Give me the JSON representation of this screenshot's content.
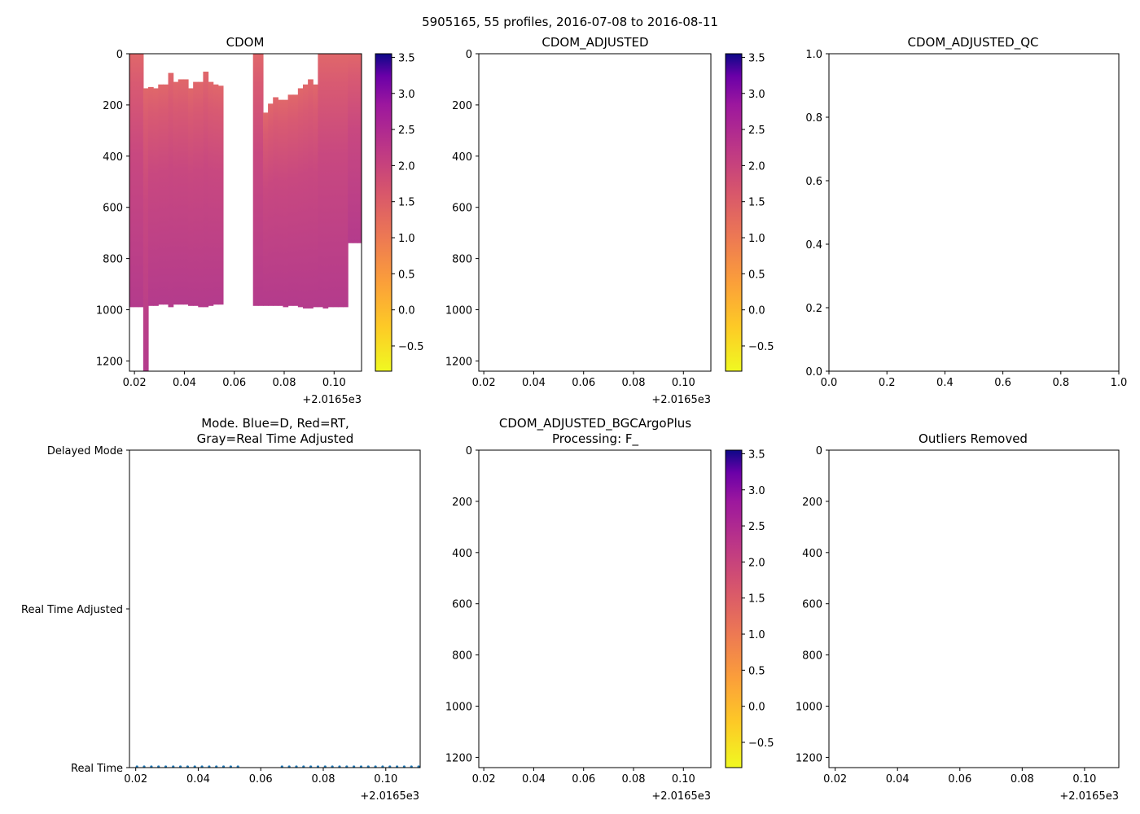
{
  "suptitle": "5905165, 55 profiles, 2016-07-08 to 2016-08-11",
  "offset_label": "+2.0165e3",
  "colormap": "plasma (reversed)",
  "chart_data": [
    {
      "id": "cdom",
      "type": "heatmap",
      "title": "CDOM",
      "xlabel": "",
      "ylabel": "",
      "xlim": [
        0.018,
        0.111
      ],
      "ylim": [
        1240,
        0
      ],
      "xticks": [
        0.02,
        0.04,
        0.06,
        0.08,
        0.1
      ],
      "xtick_labels": [
        "0.02",
        "0.04",
        "0.06",
        "0.08",
        "0.10"
      ],
      "yticks": [
        0,
        200,
        400,
        600,
        800,
        1000,
        1200
      ],
      "x_offset": "+2.0165e3",
      "colorbar": {
        "range": [
          -0.85,
          3.55
        ],
        "ticks": [
          -0.5,
          0.0,
          0.5,
          1.0,
          1.5,
          2.0,
          2.5,
          3.0,
          3.5
        ]
      },
      "value_range_approx": [
        0.8,
        1.9
      ],
      "profiles": [
        {
          "x": 0.0185,
          "top": 0,
          "bottom": 990
        },
        {
          "x": 0.0205,
          "top": 0,
          "bottom": 990
        },
        {
          "x": 0.0225,
          "top": 0,
          "bottom": 990
        },
        {
          "x": 0.0245,
          "top": 135,
          "bottom": 1240
        },
        {
          "x": 0.0265,
          "top": 130,
          "bottom": 985
        },
        {
          "x": 0.0285,
          "top": 135,
          "bottom": 985
        },
        {
          "x": 0.0305,
          "top": 120,
          "bottom": 980
        },
        {
          "x": 0.0325,
          "top": 120,
          "bottom": 980
        },
        {
          "x": 0.0345,
          "top": 75,
          "bottom": 990
        },
        {
          "x": 0.0365,
          "top": 110,
          "bottom": 980
        },
        {
          "x": 0.0385,
          "top": 100,
          "bottom": 980
        },
        {
          "x": 0.0405,
          "top": 100,
          "bottom": 980
        },
        {
          "x": 0.0425,
          "top": 135,
          "bottom": 985
        },
        {
          "x": 0.0445,
          "top": 110,
          "bottom": 985
        },
        {
          "x": 0.0465,
          "top": 110,
          "bottom": 990
        },
        {
          "x": 0.0485,
          "top": 70,
          "bottom": 990
        },
        {
          "x": 0.0505,
          "top": 110,
          "bottom": 985
        },
        {
          "x": 0.0525,
          "top": 120,
          "bottom": 980
        },
        {
          "x": 0.0545,
          "top": 125,
          "bottom": 980
        },
        {
          "x": 0.0685,
          "top": 0,
          "bottom": 985
        },
        {
          "x": 0.0705,
          "top": 0,
          "bottom": 985
        },
        {
          "x": 0.0725,
          "top": 230,
          "bottom": 985
        },
        {
          "x": 0.0745,
          "top": 195,
          "bottom": 985
        },
        {
          "x": 0.0765,
          "top": 170,
          "bottom": 985
        },
        {
          "x": 0.0785,
          "top": 180,
          "bottom": 985
        },
        {
          "x": 0.0805,
          "top": 180,
          "bottom": 990
        },
        {
          "x": 0.0825,
          "top": 160,
          "bottom": 985
        },
        {
          "x": 0.0845,
          "top": 160,
          "bottom": 985
        },
        {
          "x": 0.0865,
          "top": 135,
          "bottom": 990
        },
        {
          "x": 0.0885,
          "top": 120,
          "bottom": 995
        },
        {
          "x": 0.0905,
          "top": 100,
          "bottom": 995
        },
        {
          "x": 0.0925,
          "top": 120,
          "bottom": 990
        },
        {
          "x": 0.0945,
          "top": 0,
          "bottom": 990
        },
        {
          "x": 0.0965,
          "top": 0,
          "bottom": 995
        },
        {
          "x": 0.0985,
          "top": 0,
          "bottom": 990
        },
        {
          "x": 0.1005,
          "top": 0,
          "bottom": 990
        },
        {
          "x": 0.1025,
          "top": 0,
          "bottom": 990
        },
        {
          "x": 0.1045,
          "top": 0,
          "bottom": 990
        },
        {
          "x": 0.1065,
          "top": 0,
          "bottom": 740
        },
        {
          "x": 0.1085,
          "top": 0,
          "bottom": 740
        },
        {
          "x": 0.1105,
          "top": 0,
          "bottom": 740
        }
      ]
    },
    {
      "id": "cdom_adjusted",
      "type": "heatmap",
      "title": "CDOM_ADJUSTED",
      "xlim": [
        0.018,
        0.111
      ],
      "ylim": [
        1240,
        0
      ],
      "xticks": [
        0.02,
        0.04,
        0.06,
        0.08,
        0.1
      ],
      "xtick_labels": [
        "0.02",
        "0.04",
        "0.06",
        "0.08",
        "0.10"
      ],
      "yticks": [
        0,
        200,
        400,
        600,
        800,
        1000,
        1200
      ],
      "x_offset": "+2.0165e3",
      "colorbar": {
        "range": [
          -0.85,
          3.55
        ],
        "ticks": [
          -0.5,
          0.0,
          0.5,
          1.0,
          1.5,
          2.0,
          2.5,
          3.0,
          3.5
        ]
      },
      "data": []
    },
    {
      "id": "cdom_adjusted_qc",
      "type": "scatter",
      "title": "CDOM_ADJUSTED_QC",
      "xlim": [
        0.0,
        1.0
      ],
      "ylim": [
        0.0,
        1.0
      ],
      "xticks": [
        0.0,
        0.2,
        0.4,
        0.6,
        0.8,
        1.0
      ],
      "xtick_labels": [
        "0.0",
        "0.2",
        "0.4",
        "0.6",
        "0.8",
        "1.0"
      ],
      "yticks": [
        0.0,
        0.2,
        0.4,
        0.6,
        0.8,
        1.0
      ],
      "ytick_labels": [
        "0.0",
        "0.2",
        "0.4",
        "0.6",
        "0.8",
        "1.0"
      ],
      "data": []
    },
    {
      "id": "mode",
      "type": "scatter",
      "title_lines": [
        "Mode. Blue=D, Red=RT,",
        "Gray=Real Time Adjusted"
      ],
      "xlim": [
        0.018,
        0.111
      ],
      "xticks": [
        0.02,
        0.04,
        0.06,
        0.08,
        0.1
      ],
      "xtick_labels": [
        "0.02",
        "0.04",
        "0.06",
        "0.08",
        "0.10"
      ],
      "x_offset": "+2.0165e3",
      "ycategories": [
        "Real Time",
        "Real Time Adjusted",
        "Delayed Mode"
      ],
      "point_color": "#1f77b4",
      "points_category": "Real Time",
      "points_x": [
        0.0204,
        0.0227,
        0.025,
        0.0273,
        0.0296,
        0.032,
        0.0343,
        0.0366,
        0.0389,
        0.0412,
        0.0435,
        0.0458,
        0.0481,
        0.0504,
        0.0527,
        0.0668,
        0.0691,
        0.0714,
        0.0737,
        0.076,
        0.0783,
        0.0806,
        0.0829,
        0.0852,
        0.0875,
        0.0898,
        0.0921,
        0.0944,
        0.0967,
        0.099,
        0.1013,
        0.1036,
        0.1059,
        0.1082,
        0.1105
      ]
    },
    {
      "id": "cdom_bgcargoplus",
      "type": "heatmap",
      "title_lines": [
        "CDOM_ADJUSTED_BGCArgoPlus",
        "Processing: F_"
      ],
      "xlim": [
        0.018,
        0.111
      ],
      "ylim": [
        1240,
        0
      ],
      "xticks": [
        0.02,
        0.04,
        0.06,
        0.08,
        0.1
      ],
      "xtick_labels": [
        "0.02",
        "0.04",
        "0.06",
        "0.08",
        "0.10"
      ],
      "yticks": [
        0,
        200,
        400,
        600,
        800,
        1000,
        1200
      ],
      "x_offset": "+2.0165e3",
      "colorbar": {
        "range": [
          -0.85,
          3.55
        ],
        "ticks": [
          -0.5,
          0.0,
          0.5,
          1.0,
          1.5,
          2.0,
          2.5,
          3.0,
          3.5
        ]
      },
      "data": []
    },
    {
      "id": "outliers",
      "type": "scatter",
      "title": "Outliers Removed",
      "xlim": [
        0.018,
        0.111
      ],
      "ylim": [
        1240,
        0
      ],
      "xticks": [
        0.02,
        0.04,
        0.06,
        0.08,
        0.1
      ],
      "xtick_labels": [
        "0.02",
        "0.04",
        "0.06",
        "0.08",
        "0.10"
      ],
      "yticks": [
        0,
        200,
        400,
        600,
        800,
        1000,
        1200
      ],
      "x_offset": "+2.0165e3",
      "data": []
    }
  ]
}
